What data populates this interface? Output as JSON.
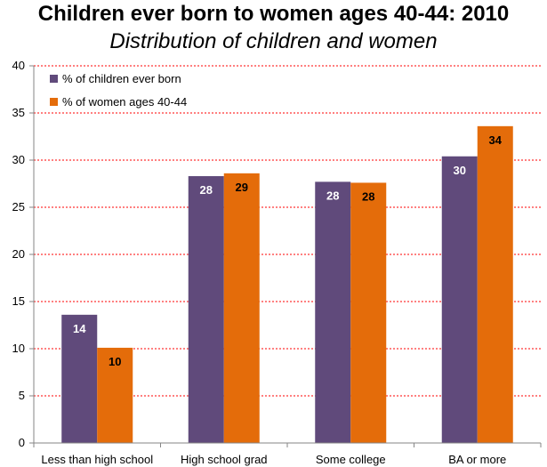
{
  "chart_data": {
    "type": "bar",
    "title": "Children ever born to women ages 40-44: 2010",
    "subtitle": "Distribution of children and women",
    "categories": [
      "Less than high school",
      "High school grad",
      "Some college",
      "BA or more"
    ],
    "series": [
      {
        "name": "% of children ever born",
        "values": [
          14,
          28,
          28,
          30
        ],
        "heights": [
          13.6,
          28.3,
          27.7,
          30.4
        ],
        "color": "#604A7B",
        "label_color": "#ffffff"
      },
      {
        "name": "% of women ages 40-44",
        "values": [
          10,
          29,
          28,
          34
        ],
        "heights": [
          10.1,
          28.6,
          27.6,
          33.6
        ],
        "color": "#E46C0A",
        "label_color": "#000000"
      }
    ],
    "ylim": [
      0,
      40
    ],
    "yticks": [
      "0",
      "5",
      "10",
      "15",
      "20",
      "25",
      "30",
      "35",
      "40"
    ],
    "grid": true,
    "grid_color": "#FF0000",
    "legend_position": "top-left"
  }
}
